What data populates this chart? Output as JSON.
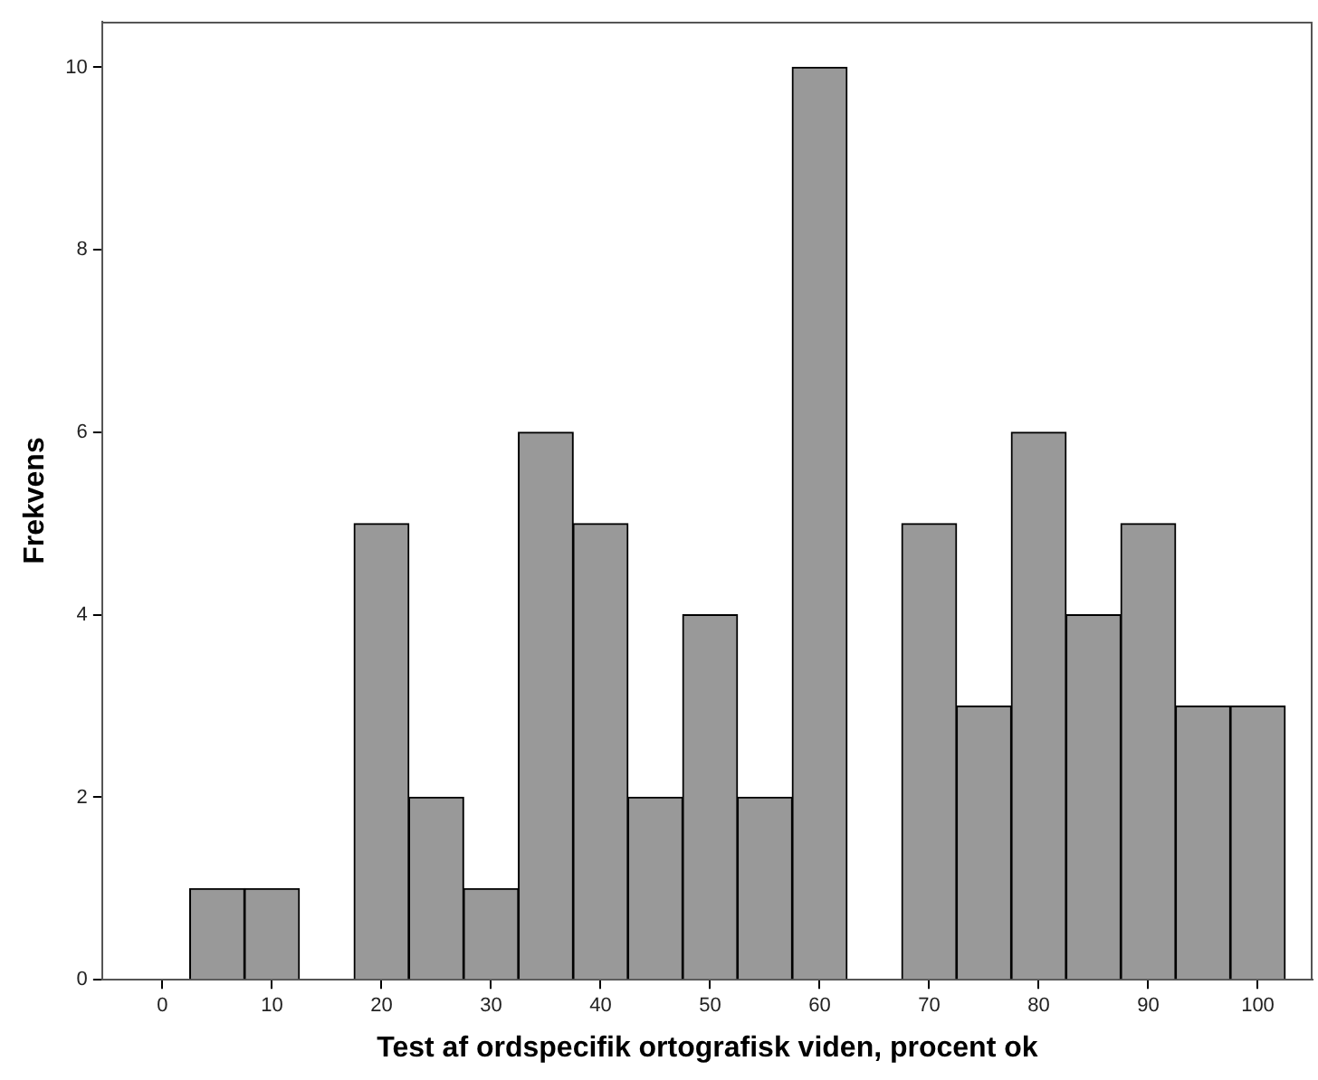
{
  "chart_data": {
    "type": "histogram",
    "xlabel": "Test af ordspecifik ortografisk viden, procent ok",
    "ylabel": "Frekvens",
    "bins": [
      2.5,
      7.5,
      12.5,
      17.5,
      22.5,
      27.5,
      32.5,
      37.5,
      42.5,
      47.5,
      52.5,
      57.5,
      62.5,
      67.5,
      72.5,
      77.5,
      82.5,
      87.5,
      92.5,
      97.5,
      102.5
    ],
    "values": [
      1,
      1,
      0,
      5,
      2,
      1,
      6,
      5,
      2,
      4,
      2,
      10,
      0,
      5,
      3,
      6,
      4,
      5,
      3,
      3
    ],
    "color": "#999999",
    "xlim": [
      -5.5,
      105
    ],
    "xticks": [
      0,
      10,
      20,
      30,
      40,
      50,
      60,
      70,
      80,
      90,
      100
    ],
    "ylim": [
      0,
      10.5
    ],
    "yticks": [
      0,
      2,
      4,
      6,
      8,
      10
    ],
    "grid": false,
    "legend": false
  }
}
